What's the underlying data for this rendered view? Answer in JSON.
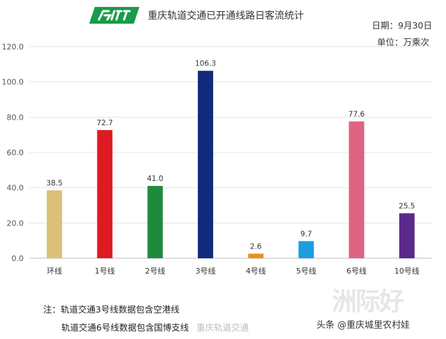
{
  "header": {
    "title": "重庆轨道交通已开通线路日客流统计",
    "date_label": "日期：9月30日",
    "unit_label": "单位：万乘次",
    "logo_color": "#1a9a4a"
  },
  "chart_data": {
    "type": "bar",
    "categories": [
      "环线",
      "1号线",
      "2号线",
      "3号线",
      "4号线",
      "5号线",
      "6号线",
      "10号线"
    ],
    "values": [
      38.5,
      72.7,
      41.0,
      106.3,
      2.6,
      9.7,
      77.6,
      25.5
    ],
    "value_labels": [
      "38.5",
      "72.7",
      "41.0",
      "106.3",
      "2.6",
      "9.7",
      "77.6",
      "25.5"
    ],
    "colors": [
      "#dcc07a",
      "#dd1a22",
      "#1f8a3e",
      "#112a7c",
      "#e89020",
      "#1b9de0",
      "#dd6480",
      "#5b2a8c"
    ],
    "ylim": [
      0,
      120
    ],
    "yticks": [
      "0.0",
      "20.0",
      "40.0",
      "60.0",
      "80.0",
      "100.0",
      "120.0"
    ],
    "ytick_values": [
      0,
      20,
      40,
      60,
      80,
      100,
      120
    ],
    "grid": true,
    "xlabel": "",
    "ylabel": ""
  },
  "notes": {
    "line1": "注：轨道交通3号线数据包含空港线",
    "line2": "轨道交通6号线数据包含国博支线"
  },
  "watermarks": {
    "big": "洲际好",
    "center": "重庆轨道交通",
    "source": "头条 @重庆城里农村娃"
  }
}
